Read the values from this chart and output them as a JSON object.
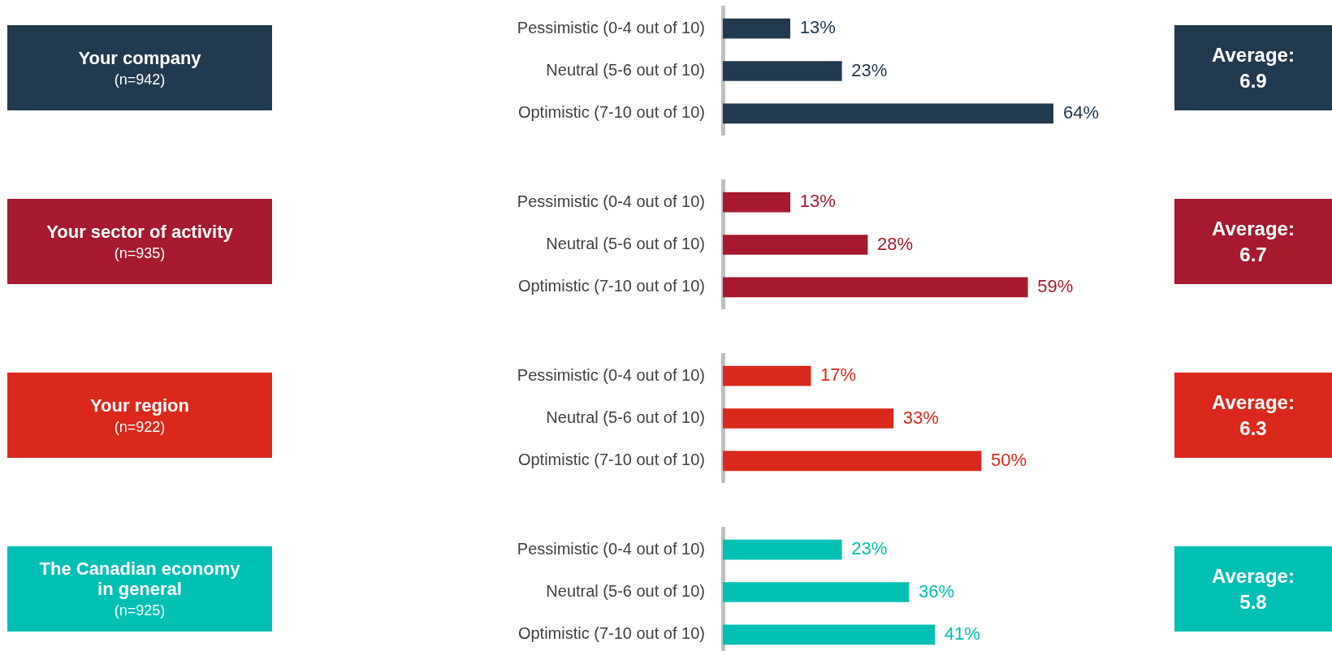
{
  "chart_data": [
    {
      "type": "bar",
      "orientation": "horizontal",
      "ylabel": "Your company",
      "categories": [
        "Pessimistic (0-4 out of 10)",
        "Neutral (5-6 out of 10)",
        "Optimistic (7-10 out of 10)"
      ],
      "values": [
        13,
        23,
        64
      ],
      "value_labels": [
        "13%",
        "23%",
        "64%"
      ],
      "color": "#223a4f",
      "tick_labels": "y",
      "annotations": [
        "(n=942)",
        "Average: 6.9"
      ]
    },
    {
      "type": "bar",
      "orientation": "horizontal",
      "ylabel": "Your sector of activity",
      "categories": [
        "Pessimistic (0-4 out of 10)",
        "Neutral (5-6 out of 10)",
        "Optimistic (7-10 out of 10)"
      ],
      "values": [
        13,
        28,
        59
      ],
      "value_labels": [
        "13%",
        "28%",
        "59%"
      ],
      "color": "#a6192e",
      "tick_labels": "y",
      "annotations": [
        "(n=935)",
        "Average: 6.7"
      ]
    },
    {
      "type": "bar",
      "orientation": "horizontal",
      "ylabel": "Your region",
      "categories": [
        "Pessimistic (0-4 out of 10)",
        "Neutral (5-6 out of 10)",
        "Optimistic (7-10 out of 10)"
      ],
      "values": [
        17,
        33,
        50
      ],
      "value_labels": [
        "17%",
        "33%",
        "50%"
      ],
      "color": "#da291c",
      "tick_labels": "y",
      "annotations": [
        "(n=922)",
        "Average: 6.3"
      ]
    },
    {
      "type": "bar",
      "orientation": "horizontal",
      "ylabel": "The Canadian economy in general",
      "categories": [
        "Pessimistic (0-4 out of 10)",
        "Neutral (5-6 out of 10)",
        "Optimistic (7-10 out of 10)"
      ],
      "values": [
        23,
        36,
        41
      ],
      "value_labels": [
        "23%",
        "36%",
        "41%"
      ],
      "color": "#00bfb3",
      "tick_labels": "y",
      "annotations": [
        "(n=925)",
        "Average: 5.8"
      ]
    }
  ]
}
